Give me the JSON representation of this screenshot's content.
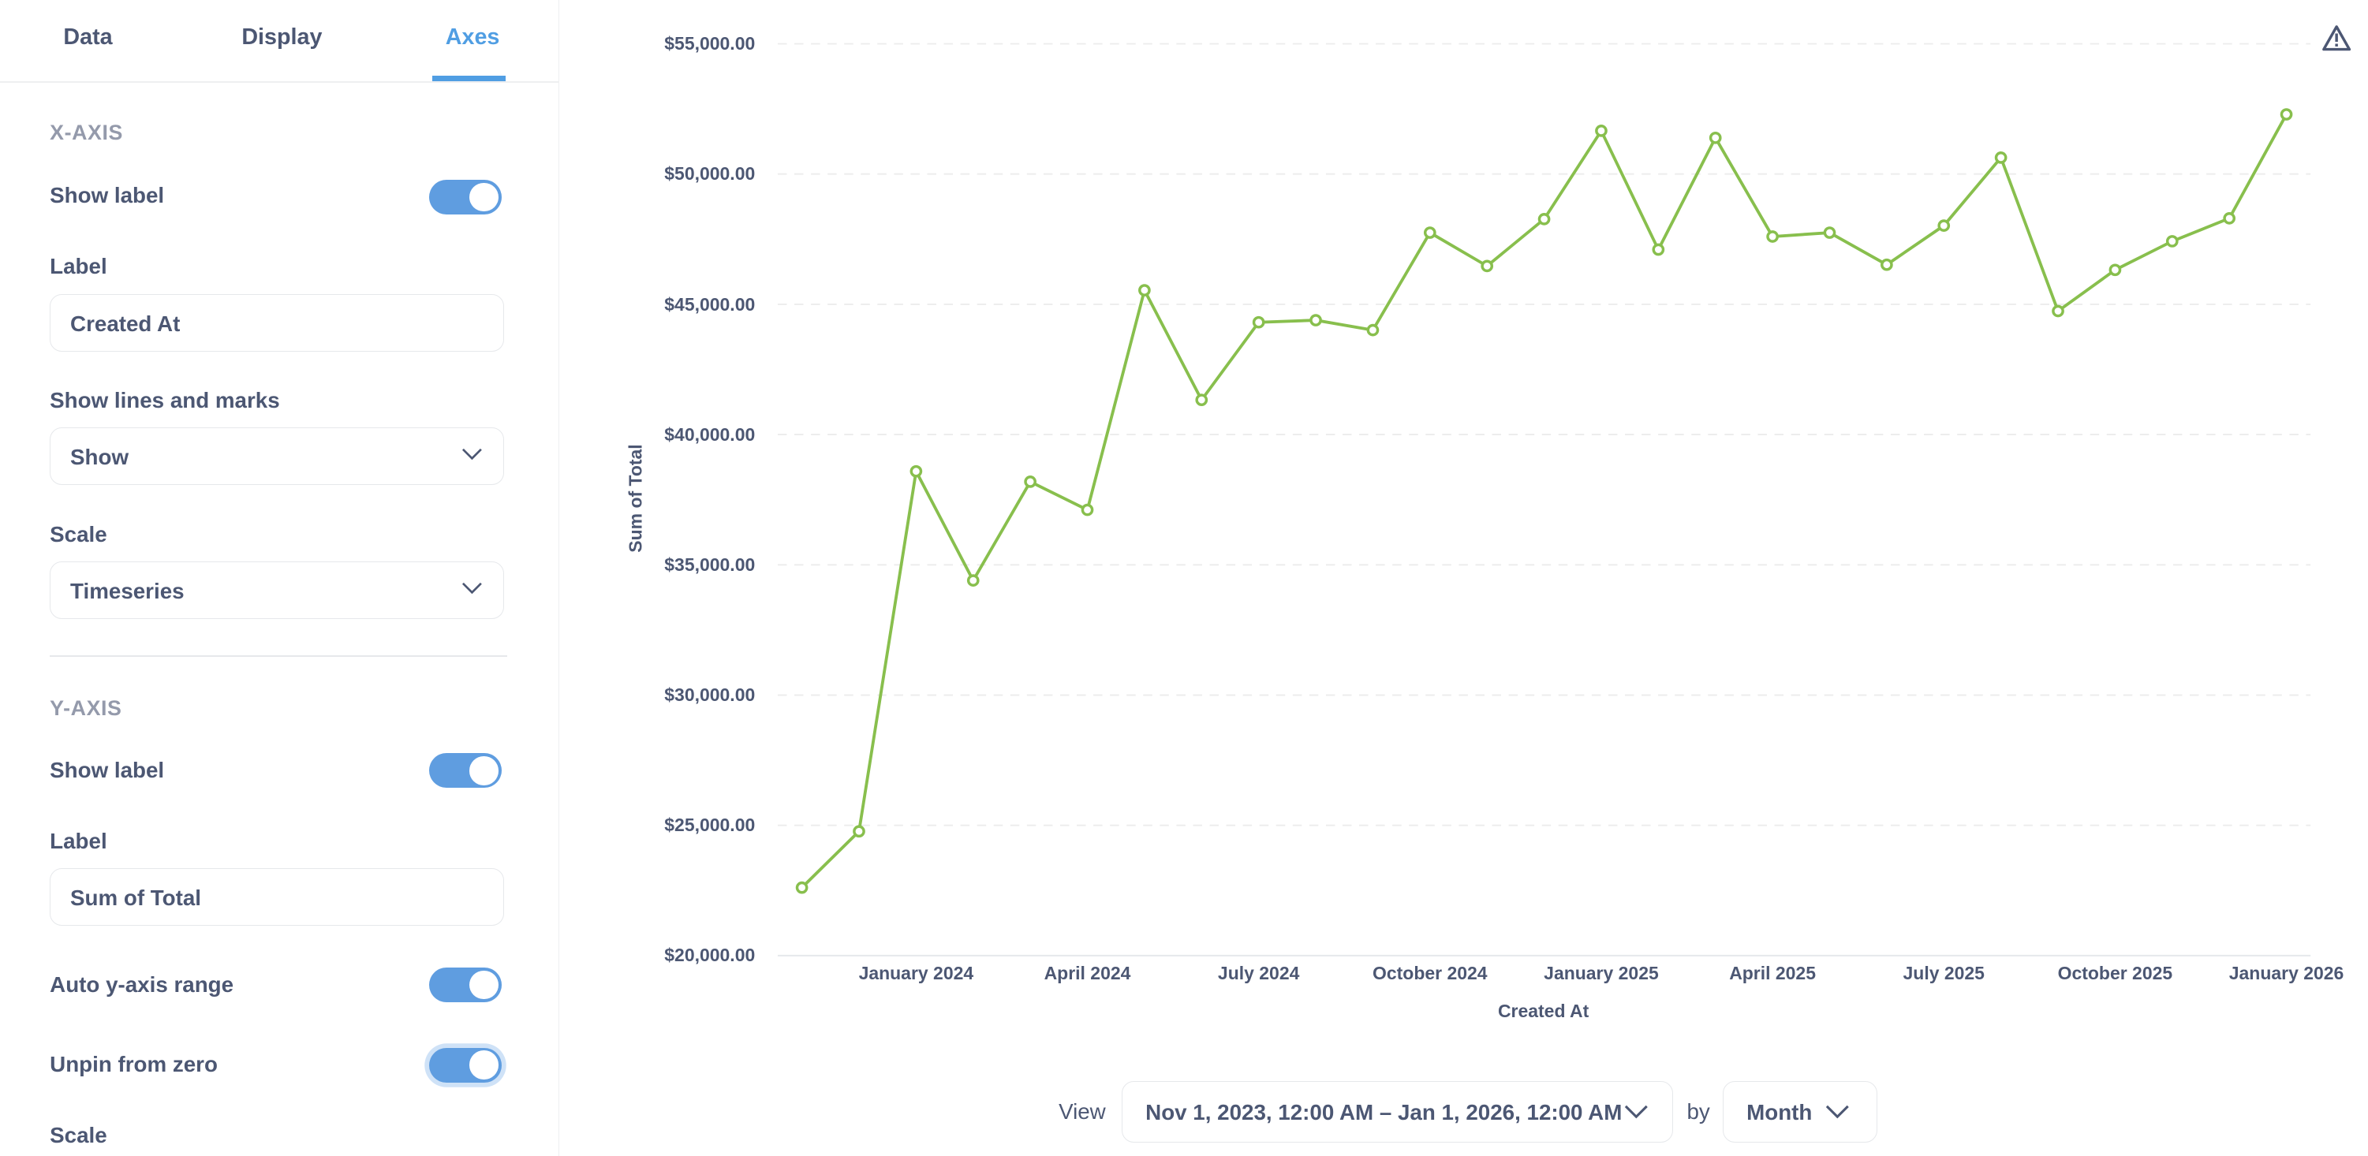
{
  "tabs": [
    {
      "label": "Data",
      "active": false
    },
    {
      "label": "Display",
      "active": false
    },
    {
      "label": "Axes",
      "active": true
    }
  ],
  "x_axis": {
    "section_title": "X-AXIS",
    "show_label": {
      "label": "Show label",
      "on": true
    },
    "label_field": {
      "label": "Label",
      "value": "Created At"
    },
    "lines_marks": {
      "label": "Show lines and marks",
      "value": "Show"
    },
    "scale": {
      "label": "Scale",
      "value": "Timeseries"
    }
  },
  "y_axis": {
    "section_title": "Y-AXIS",
    "show_label": {
      "label": "Show label",
      "on": true
    },
    "label_field": {
      "label": "Label",
      "value": "Sum of Total"
    },
    "auto_range": {
      "label": "Auto y-axis range",
      "on": true
    },
    "unpin_zero": {
      "label": "Unpin from zero",
      "on": true
    },
    "scale_label": "Scale"
  },
  "colors": {
    "accent": "#509ee3",
    "toggle": "#5f9de0",
    "series": "#88bf4d",
    "text": "#4c5773",
    "muted": "#949aab"
  },
  "icons": {
    "warning": "warning-triangle-icon",
    "chevron": "chevron-down-icon"
  },
  "footer": {
    "view_label": "View",
    "date_range": "Nov 1, 2023, 12:00 AM – Jan 1, 2026, 12:00 AM",
    "by_label": "by",
    "granularity": "Month"
  },
  "chart_data": {
    "type": "line",
    "xlabel": "Created At",
    "ylabel": "Sum of Total",
    "ylim": [
      20000,
      55000
    ],
    "y_ticks": [
      "$20,000.00",
      "$25,000.00",
      "$30,000.00",
      "$35,000.00",
      "$40,000.00",
      "$45,000.00",
      "$50,000.00",
      "$55,000.00"
    ],
    "y_tick_values": [
      20000,
      25000,
      30000,
      35000,
      40000,
      45000,
      50000,
      55000
    ],
    "x_ticks": [
      {
        "label": "January 2024",
        "x": "2024-01"
      },
      {
        "label": "April 2024",
        "x": "2024-04"
      },
      {
        "label": "July 2024",
        "x": "2024-07"
      },
      {
        "label": "October 2024",
        "x": "2024-10"
      },
      {
        "label": "January 2025",
        "x": "2025-01"
      },
      {
        "label": "April 2025",
        "x": "2025-04"
      },
      {
        "label": "July 2025",
        "x": "2025-07"
      },
      {
        "label": "October 2025",
        "x": "2025-10"
      },
      {
        "label": "January 2026",
        "x": "2026-01"
      }
    ],
    "grid": "horizontal dashed",
    "markers": true,
    "x": [
      "2023-11",
      "2023-12",
      "2024-01",
      "2024-02",
      "2024-03",
      "2024-04",
      "2024-05",
      "2024-06",
      "2024-07",
      "2024-08",
      "2024-09",
      "2024-10",
      "2024-11",
      "2024-12",
      "2025-01",
      "2025-02",
      "2025-03",
      "2025-04",
      "2025-05",
      "2025-06",
      "2025-07",
      "2025-08",
      "2025-09",
      "2025-10",
      "2025-11",
      "2025-12",
      "2026-01"
    ],
    "values": [
      22610,
      24770,
      38590,
      34400,
      38190,
      37110,
      45540,
      41330,
      44310,
      44390,
      44010,
      47750,
      46470,
      48270,
      51660,
      47100,
      51390,
      47600,
      47750,
      46520,
      48020,
      50630,
      44740,
      46320,
      47420,
      48300,
      52290
    ]
  }
}
